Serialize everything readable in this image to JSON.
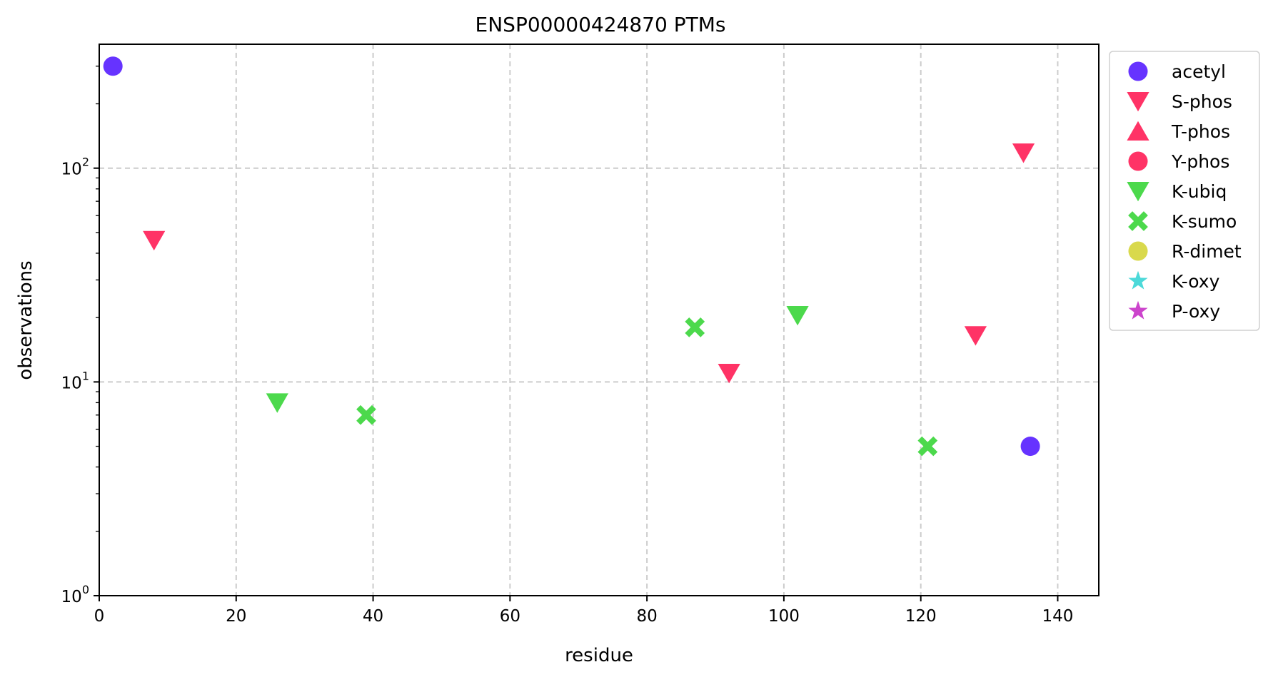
{
  "chart_data": {
    "type": "scatter",
    "title": "ENSP00000424870 PTMs",
    "xlabel": "residue",
    "ylabel": "observations",
    "xlim": [
      0,
      146
    ],
    "ylim": [
      1,
      380
    ],
    "yscale": "log",
    "grid": true,
    "legend_position": "outside-right",
    "x_ticks": [
      "0",
      "20",
      "40",
      "60",
      "80",
      "100",
      "120",
      "140"
    ],
    "x_tick_values": [
      0,
      20,
      40,
      60,
      80,
      100,
      120,
      140
    ],
    "y_ticks": [
      {
        "value": 1,
        "base": "10",
        "exp": "0"
      },
      {
        "value": 10,
        "base": "10",
        "exp": "1"
      },
      {
        "value": 100,
        "base": "10",
        "exp": "2"
      }
    ],
    "series": [
      {
        "name": "acetyl",
        "marker": "circle",
        "color": "#6633ff",
        "points": [
          [
            2,
            300
          ],
          [
            136,
            5
          ]
        ]
      },
      {
        "name": "S-phos",
        "marker": "triangle-down",
        "color": "#ff3366",
        "points": [
          [
            8,
            46
          ],
          [
            92,
            11
          ],
          [
            128,
            16.5
          ],
          [
            135,
            118
          ]
        ]
      },
      {
        "name": "T-phos",
        "marker": "triangle-up",
        "color": "#ff3366",
        "points": []
      },
      {
        "name": "Y-phos",
        "marker": "circle",
        "color": "#ff3366",
        "points": []
      },
      {
        "name": "K-ubiq",
        "marker": "triangle-down",
        "color": "#4cd94c",
        "points": [
          [
            26,
            8
          ],
          [
            102,
            20.5
          ]
        ]
      },
      {
        "name": "K-sumo",
        "marker": "x",
        "color": "#4cd94c",
        "points": [
          [
            39,
            7
          ],
          [
            87,
            18
          ],
          [
            121,
            5
          ]
        ]
      },
      {
        "name": "R-dimet",
        "marker": "circle",
        "color": "#d9d94c",
        "points": []
      },
      {
        "name": "K-oxy",
        "marker": "star",
        "color": "#4cd9d9",
        "points": []
      },
      {
        "name": "P-oxy",
        "marker": "star",
        "color": "#cc44cc",
        "points": []
      }
    ]
  }
}
